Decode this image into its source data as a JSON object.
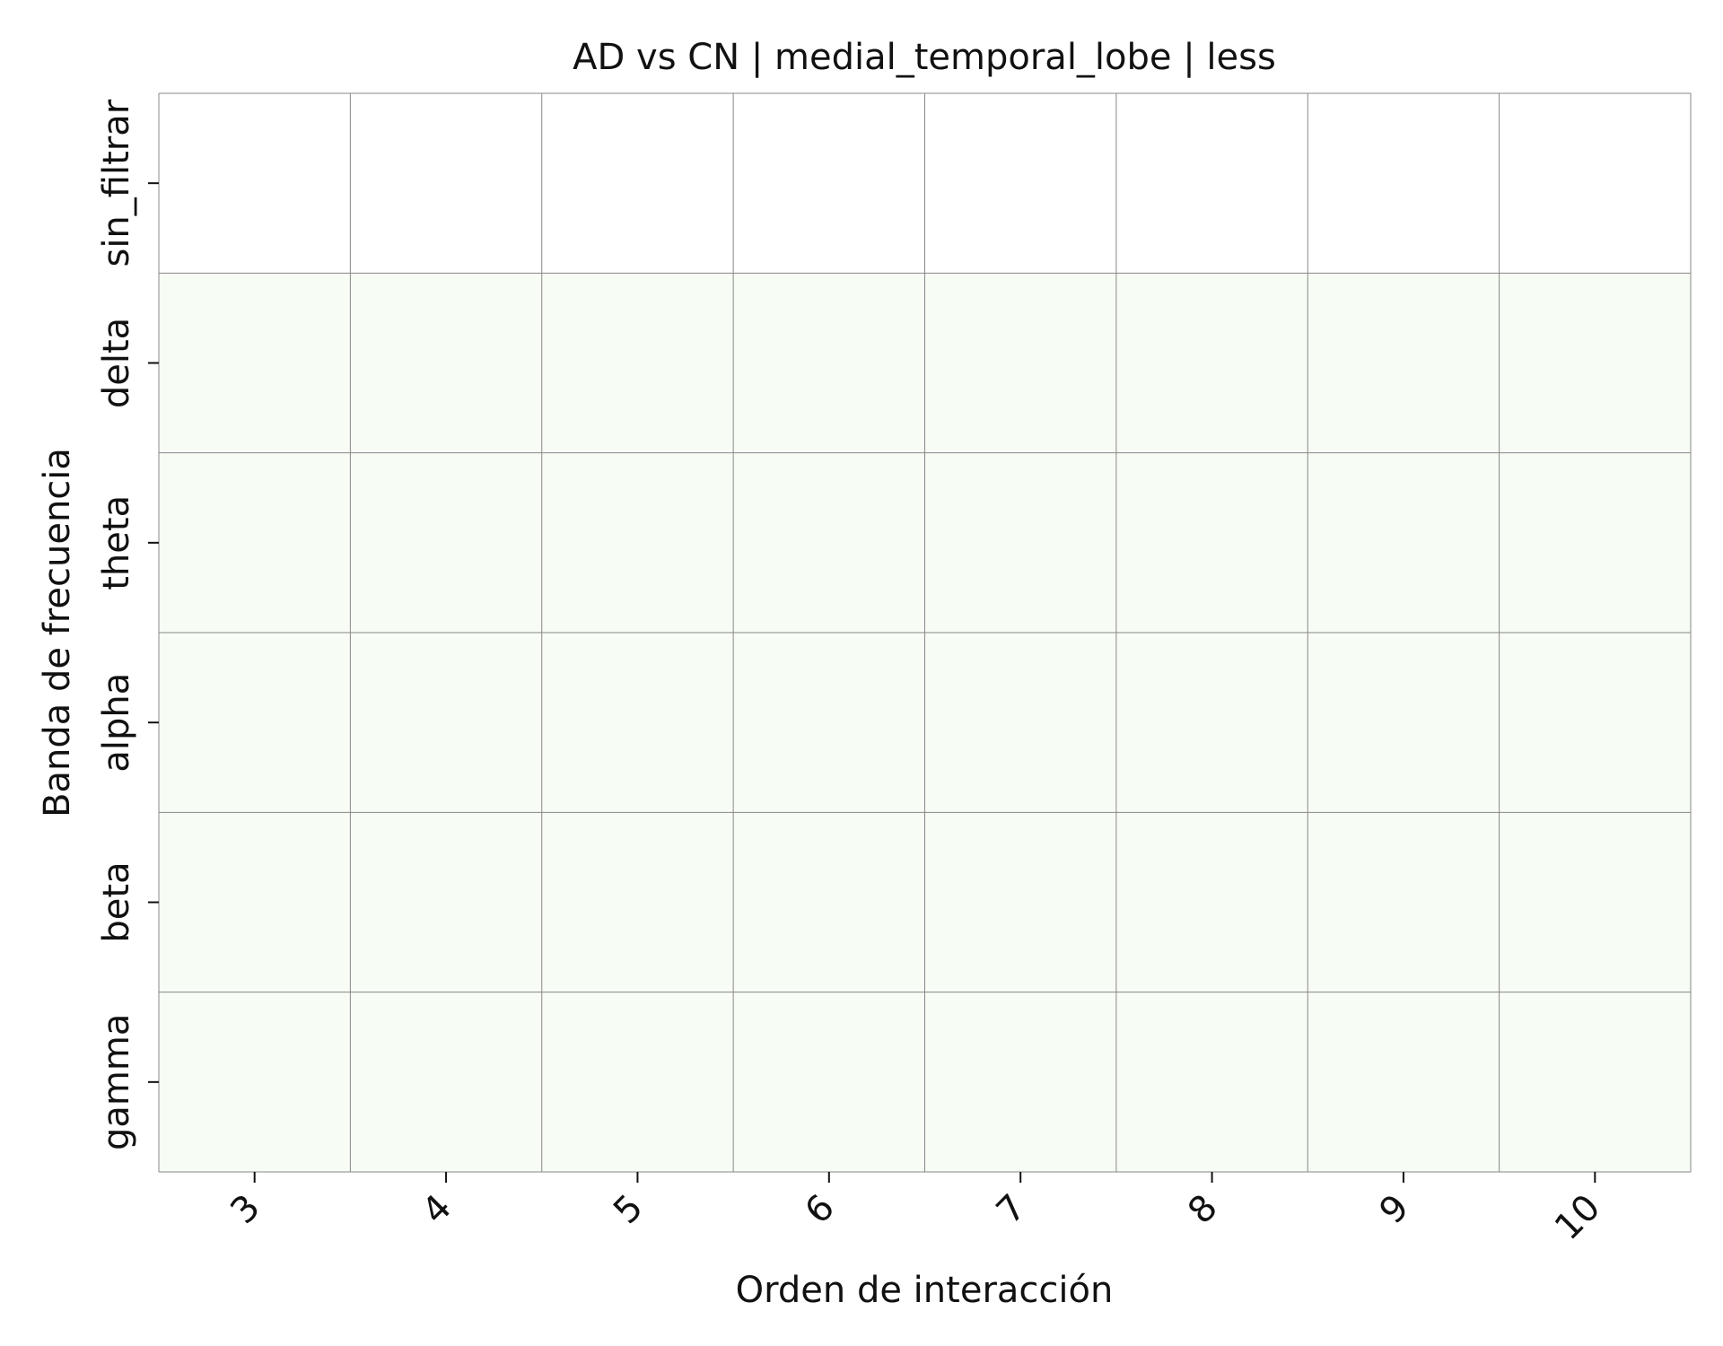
{
  "chart_data": {
    "type": "heatmap",
    "title": "AD vs CN | medial_temporal_lobe | less",
    "xlabel": "Orden de interacción",
    "ylabel": "Banda de frecuencia",
    "x_categories": [
      "3",
      "4",
      "5",
      "6",
      "7",
      "8",
      "9",
      "10"
    ],
    "y_categories": [
      "sin_filtrar",
      "delta",
      "theta",
      "alpha",
      "beta",
      "gamma"
    ],
    "values": [
      [
        null,
        null,
        null,
        null,
        null,
        null,
        null,
        null
      ],
      [
        0,
        0,
        0,
        0,
        0,
        0,
        0,
        0
      ],
      [
        0,
        0,
        0,
        0,
        0,
        0,
        0,
        0
      ],
      [
        0,
        0,
        0,
        0,
        0,
        0,
        0,
        0
      ],
      [
        0,
        0,
        0,
        0,
        0,
        0,
        0,
        0
      ],
      [
        0,
        0,
        0,
        0,
        0,
        0,
        0,
        0
      ]
    ],
    "colors": {
      "cell_fill": "#f7fcf5",
      "missing_fill": "#ffffff",
      "grid_line": "#888888"
    },
    "grid": true
  }
}
